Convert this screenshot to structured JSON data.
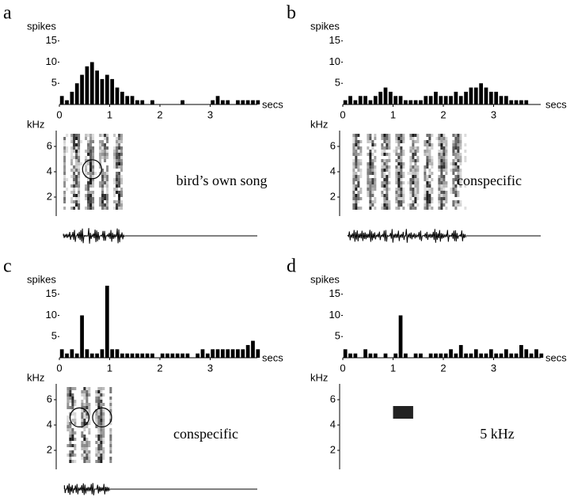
{
  "chart_data": [
    {
      "type": "histogram",
      "label": "a",
      "ylabel": "spikes",
      "xlabel": "secs",
      "color": "#000000",
      "bins": [
        0,
        0.1,
        0.2,
        0.3,
        0.4,
        0.5,
        0.6,
        0.7,
        0.8,
        0.9,
        1,
        1.1,
        1.2,
        1.3,
        1.4,
        1.5,
        1.6,
        1.7,
        1.8,
        1.9,
        2,
        2.1,
        2.2,
        2.3,
        2.4,
        2.5,
        2.6,
        2.7,
        2.8,
        2.9,
        3,
        3.1,
        3.2,
        3.3,
        3.4,
        3.5,
        3.6,
        3.7,
        3.8,
        3.9,
        4
      ],
      "values": [
        2,
        1,
        3,
        5,
        7,
        9,
        10,
        8,
        6,
        7,
        6,
        4,
        3,
        2,
        2,
        1,
        1,
        0,
        1,
        0,
        0,
        0,
        0,
        0,
        1,
        0,
        0,
        0,
        0,
        0,
        1,
        2,
        1,
        1,
        0,
        1,
        1,
        1,
        1,
        1
      ],
      "xlim": [
        0,
        4
      ],
      "ylim": [
        0,
        17
      ],
      "xticks": [
        0,
        1,
        2,
        3
      ],
      "yticks": [
        5,
        10,
        15
      ],
      "spectrogram": {
        "ylabel": "kHz",
        "ylim": [
          1,
          7
        ],
        "yticks": [
          2,
          4,
          6
        ]
      },
      "annotation": "bird’s own song"
    },
    {
      "type": "histogram",
      "label": "b",
      "ylabel": "spikes",
      "xlabel": "secs",
      "color": "#000000",
      "bins": [
        0,
        0.1,
        0.2,
        0.3,
        0.4,
        0.5,
        0.6,
        0.7,
        0.8,
        0.9,
        1,
        1.1,
        1.2,
        1.3,
        1.4,
        1.5,
        1.6,
        1.7,
        1.8,
        1.9,
        2,
        2.1,
        2.2,
        2.3,
        2.4,
        2.5,
        2.6,
        2.7,
        2.8,
        2.9,
        3,
        3.1,
        3.2,
        3.3,
        3.4,
        3.5,
        3.6,
        3.7,
        3.8,
        3.9,
        4
      ],
      "values": [
        1,
        2,
        1,
        2,
        2,
        1,
        2,
        3,
        4,
        3,
        2,
        2,
        1,
        1,
        1,
        1,
        2,
        2,
        3,
        2,
        2,
        2,
        3,
        2,
        3,
        4,
        4,
        5,
        4,
        3,
        3,
        2,
        2,
        1,
        1,
        1,
        1,
        0,
        0,
        0
      ],
      "xlim": [
        0,
        4
      ],
      "ylim": [
        0,
        17
      ],
      "xticks": [
        0,
        1,
        2,
        3
      ],
      "yticks": [
        5,
        10,
        15
      ],
      "spectrogram": {
        "ylabel": "kHz",
        "ylim": [
          1,
          7
        ],
        "yticks": [
          2,
          4,
          6
        ]
      },
      "annotation": "conspecific"
    },
    {
      "type": "histogram",
      "label": "c",
      "ylabel": "spikes",
      "xlabel": "secs",
      "color": "#000000",
      "bins": [
        0,
        0.1,
        0.2,
        0.3,
        0.4,
        0.5,
        0.6,
        0.7,
        0.8,
        0.9,
        1,
        1.1,
        1.2,
        1.3,
        1.4,
        1.5,
        1.6,
        1.7,
        1.8,
        1.9,
        2,
        2.1,
        2.2,
        2.3,
        2.4,
        2.5,
        2.6,
        2.7,
        2.8,
        2.9,
        3,
        3.1,
        3.2,
        3.3,
        3.4,
        3.5,
        3.6,
        3.7,
        3.8,
        3.9,
        4
      ],
      "values": [
        2,
        1,
        2,
        1,
        10,
        2,
        1,
        1,
        2,
        17,
        2,
        2,
        1,
        1,
        1,
        1,
        1,
        1,
        1,
        0,
        1,
        1,
        1,
        1,
        1,
        1,
        0,
        1,
        2,
        1,
        2,
        2,
        2,
        2,
        2,
        2,
        2,
        3,
        4,
        2
      ],
      "xlim": [
        0,
        4
      ],
      "ylim": [
        0,
        17
      ],
      "xticks": [
        0,
        1,
        2,
        3
      ],
      "yticks": [
        5,
        10,
        15
      ],
      "spectrogram": {
        "ylabel": "kHz",
        "ylim": [
          1,
          7
        ],
        "yticks": [
          2,
          4,
          6
        ]
      },
      "annotation": "conspecific"
    },
    {
      "type": "histogram",
      "label": "d",
      "ylabel": "spikes",
      "xlabel": "secs",
      "color": "#000000",
      "bins": [
        0,
        0.1,
        0.2,
        0.3,
        0.4,
        0.5,
        0.6,
        0.7,
        0.8,
        0.9,
        1,
        1.1,
        1.2,
        1.3,
        1.4,
        1.5,
        1.6,
        1.7,
        1.8,
        1.9,
        2,
        2.1,
        2.2,
        2.3,
        2.4,
        2.5,
        2.6,
        2.7,
        2.8,
        2.9,
        3,
        3.1,
        3.2,
        3.3,
        3.4,
        3.5,
        3.6,
        3.7,
        3.8,
        3.9,
        4
      ],
      "values": [
        2,
        1,
        1,
        0,
        2,
        1,
        1,
        0,
        1,
        0,
        1,
        10,
        1,
        0,
        1,
        1,
        0,
        1,
        1,
        1,
        1,
        2,
        1,
        3,
        1,
        1,
        2,
        1,
        1,
        2,
        1,
        1,
        2,
        1,
        1,
        3,
        2,
        1,
        2,
        1
      ],
      "xlim": [
        0,
        4
      ],
      "ylim": [
        0,
        17
      ],
      "xticks": [
        0,
        1,
        2,
        3
      ],
      "yticks": [
        5,
        10,
        15
      ],
      "spectrogram": {
        "ylabel": "kHz",
        "ylim": [
          1,
          7
        ],
        "yticks": [
          2,
          4,
          6
        ]
      },
      "annotation": "5 kHz"
    }
  ]
}
